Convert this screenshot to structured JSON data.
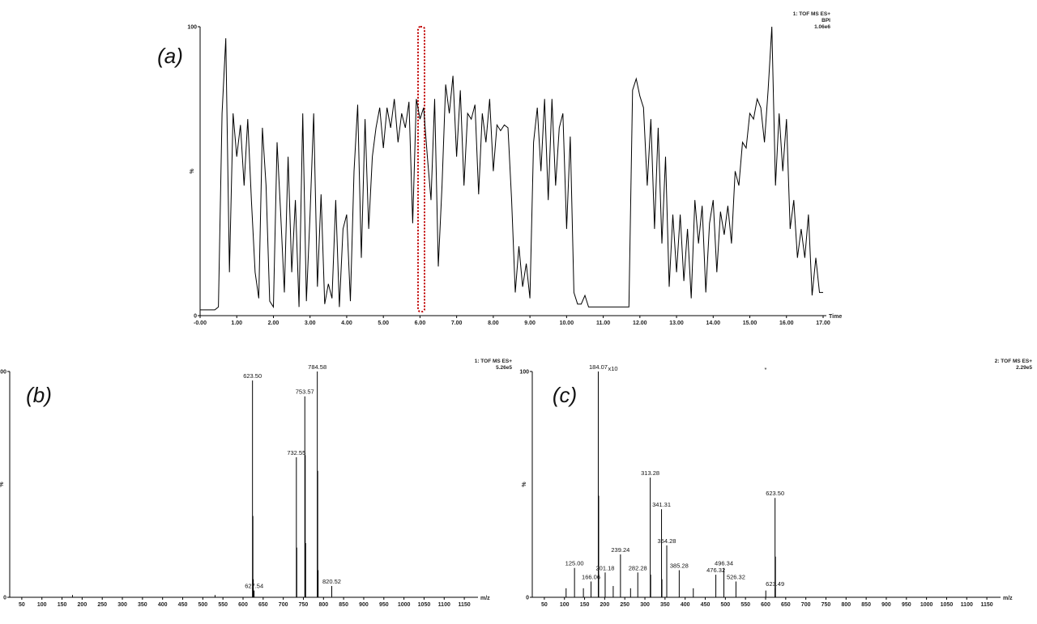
{
  "chart_data": [
    {
      "type": "line",
      "panel": "(a)",
      "info": [
        "1: TOF MS ES+",
        "BPI",
        "1.06e6"
      ],
      "xlabel": "Time",
      "ylabel": "%",
      "color": "#000000",
      "xlim": [
        0,
        17
      ],
      "ylim": [
        0,
        100
      ],
      "yticks": [
        0,
        100
      ],
      "xticks": [
        {
          "value": 0,
          "label": "-0.00"
        },
        {
          "value": 1,
          "label": "1.00"
        },
        {
          "value": 2,
          "label": "2.00"
        },
        {
          "value": 3,
          "label": "3.00"
        },
        {
          "value": 4,
          "label": "4.00"
        },
        {
          "value": 5,
          "label": "5.00"
        },
        {
          "value": 6,
          "label": "6.00"
        },
        {
          "value": 7,
          "label": "7.00"
        },
        {
          "value": 8,
          "label": "8.00"
        },
        {
          "value": 9,
          "label": "9.00"
        },
        {
          "value": 10,
          "label": "10.00"
        },
        {
          "value": 11,
          "label": "11.00"
        },
        {
          "value": 12,
          "label": "12.00"
        },
        {
          "value": 13,
          "label": "13.00"
        },
        {
          "value": 14,
          "label": "14.00"
        },
        {
          "value": 15,
          "label": "15.00"
        },
        {
          "value": 16,
          "label": "16.00"
        },
        {
          "value": 17,
          "label": "17.00"
        }
      ],
      "x": [
        0,
        0.1,
        0.2,
        0.3,
        0.4,
        0.5,
        0.6,
        0.7,
        0.8,
        0.9,
        1,
        1.1,
        1.2,
        1.3,
        1.4,
        1.5,
        1.6,
        1.7,
        1.8,
        1.9,
        2,
        2.1,
        2.2,
        2.3,
        2.4,
        2.5,
        2.6,
        2.7,
        2.8,
        2.9,
        3,
        3.1,
        3.2,
        3.3,
        3.4,
        3.5,
        3.6,
        3.7,
        3.8,
        3.9,
        4,
        4.1,
        4.2,
        4.3,
        4.4,
        4.5,
        4.6,
        4.7,
        4.8,
        4.9,
        5,
        5.1,
        5.2,
        5.3,
        5.4,
        5.5,
        5.6,
        5.7,
        5.8,
        5.9,
        6,
        6.1,
        6.2,
        6.3,
        6.4,
        6.5,
        6.6,
        6.7,
        6.8,
        6.9,
        7,
        7.1,
        7.2,
        7.3,
        7.4,
        7.5,
        7.6,
        7.7,
        7.8,
        7.9,
        8,
        8.1,
        8.2,
        8.3,
        8.4,
        8.5,
        8.6,
        8.7,
        8.8,
        8.9,
        9,
        9.1,
        9.2,
        9.3,
        9.4,
        9.5,
        9.6,
        9.7,
        9.8,
        9.9,
        10,
        10.1,
        10.2,
        10.3,
        10.4,
        10.5,
        10.6,
        10.7,
        10.8,
        10.9,
        11,
        11.1,
        11.2,
        11.3,
        11.4,
        11.5,
        11.6,
        11.7,
        11.8,
        11.9,
        12,
        12.1,
        12.2,
        12.3,
        12.4,
        12.5,
        12.6,
        12.7,
        12.8,
        12.9,
        13,
        13.1,
        13.2,
        13.3,
        13.4,
        13.5,
        13.6,
        13.7,
        13.8,
        13.9,
        14,
        14.1,
        14.2,
        14.3,
        14.4,
        14.5,
        14.6,
        14.7,
        14.8,
        14.9,
        15,
        15.1,
        15.2,
        15.3,
        15.4,
        15.5,
        15.6,
        15.7,
        15.8,
        15.9,
        16,
        16.1,
        16.2,
        16.3,
        16.4,
        16.5,
        16.6,
        16.7,
        16.8,
        16.9,
        17
      ],
      "values": [
        2,
        2,
        2,
        2,
        2,
        3,
        70,
        96,
        15,
        70,
        55,
        66,
        45,
        68,
        40,
        15,
        6,
        65,
        45,
        5,
        3,
        60,
        35,
        8,
        55,
        15,
        40,
        3,
        70,
        5,
        35,
        70,
        10,
        42,
        4,
        11,
        6,
        40,
        3,
        30,
        35,
        5,
        50,
        73,
        20,
        68,
        30,
        55,
        65,
        72,
        58,
        72,
        65,
        75,
        60,
        70,
        65,
        74,
        32,
        75,
        68,
        72,
        55,
        40,
        75,
        17,
        45,
        80,
        70,
        83,
        55,
        78,
        45,
        70,
        68,
        73,
        42,
        70,
        60,
        75,
        50,
        66,
        64,
        66,
        65,
        40,
        8,
        24,
        10,
        18,
        6,
        60,
        72,
        50,
        75,
        40,
        75,
        45,
        65,
        70,
        30,
        62,
        8,
        4,
        4,
        7,
        3,
        3,
        3,
        3,
        3,
        3,
        3,
        3,
        3,
        3,
        3,
        3,
        78,
        82,
        76,
        72,
        45,
        68,
        30,
        65,
        25,
        55,
        10,
        35,
        15,
        35,
        12,
        30,
        6,
        40,
        25,
        38,
        8,
        32,
        40,
        15,
        36,
        28,
        38,
        25,
        50,
        45,
        60,
        58,
        70,
        68,
        75,
        72,
        60,
        78,
        100,
        45,
        70,
        50,
        68,
        30,
        40,
        20,
        30,
        20,
        35,
        7,
        20,
        8,
        8
      ]
    },
    {
      "type": "stem",
      "panel": "(b)",
      "info": [
        "1: TOF MS ES+",
        "5.26e5"
      ],
      "xlabel": "m/z",
      "ylabel": "%",
      "color": "#000000",
      "xlim": [
        20,
        1180
      ],
      "ylim": [
        0,
        100
      ],
      "yticks": [
        0,
        100
      ],
      "xticks": [
        50,
        100,
        150,
        200,
        250,
        300,
        350,
        400,
        450,
        500,
        550,
        600,
        650,
        700,
        750,
        800,
        850,
        900,
        950,
        1000,
        1050,
        1100,
        1150
      ],
      "x": [
        176.1,
        530.4,
        623.5,
        624.5,
        625.5,
        627.54,
        732.55,
        733.56,
        753.57,
        754.58,
        755.58,
        784.58,
        785.59,
        786.6,
        820.52
      ],
      "values": [
        1,
        1,
        96,
        36,
        8,
        3,
        62,
        22,
        89,
        63,
        24,
        100,
        56,
        12,
        5
      ],
      "labels": [
        null,
        null,
        "623.50",
        null,
        null,
        "627.54",
        "732.55",
        null,
        "753.57",
        null,
        null,
        "784.58",
        null,
        null,
        "820.52"
      ]
    },
    {
      "type": "stem",
      "panel": "(c)",
      "info": [
        "2: TOF MS ES+",
        "2.29e5"
      ],
      "multiplier": "x10",
      "marker": "*",
      "xlabel": "m/z",
      "ylabel": "%",
      "color": "#000000",
      "xlim": [
        20,
        1180
      ],
      "ylim": [
        0,
        100
      ],
      "yticks": [
        0,
        100
      ],
      "xticks": [
        50,
        100,
        150,
        200,
        250,
        300,
        350,
        400,
        450,
        500,
        550,
        600,
        650,
        700,
        750,
        800,
        850,
        900,
        950,
        1000,
        1050,
        1100,
        1150
      ],
      "x": [
        104.1,
        125.0,
        147.1,
        166.06,
        184.07,
        185.08,
        201.18,
        221.2,
        239.24,
        264.3,
        282.28,
        313.28,
        314.3,
        341.31,
        342.3,
        354.28,
        385.28,
        420.3,
        476.32,
        496.34,
        526.32,
        600.5,
        623.49,
        623.5,
        624.5
      ],
      "values": [
        4,
        13,
        4,
        7,
        100,
        45,
        11,
        5,
        19,
        4,
        11,
        53,
        10,
        39,
        8,
        23,
        12,
        4,
        10,
        13,
        7,
        3,
        4,
        44,
        18
      ],
      "labels": [
        null,
        "125.00",
        null,
        "166.06",
        "184.07",
        null,
        "201.18",
        null,
        "239.24",
        null,
        "282.28",
        "313.28",
        null,
        "341.31",
        null,
        "354.28",
        "385.28",
        null,
        "476.32",
        "496.34",
        "526.32",
        null,
        "623.49",
        "623.50",
        null
      ]
    }
  ]
}
